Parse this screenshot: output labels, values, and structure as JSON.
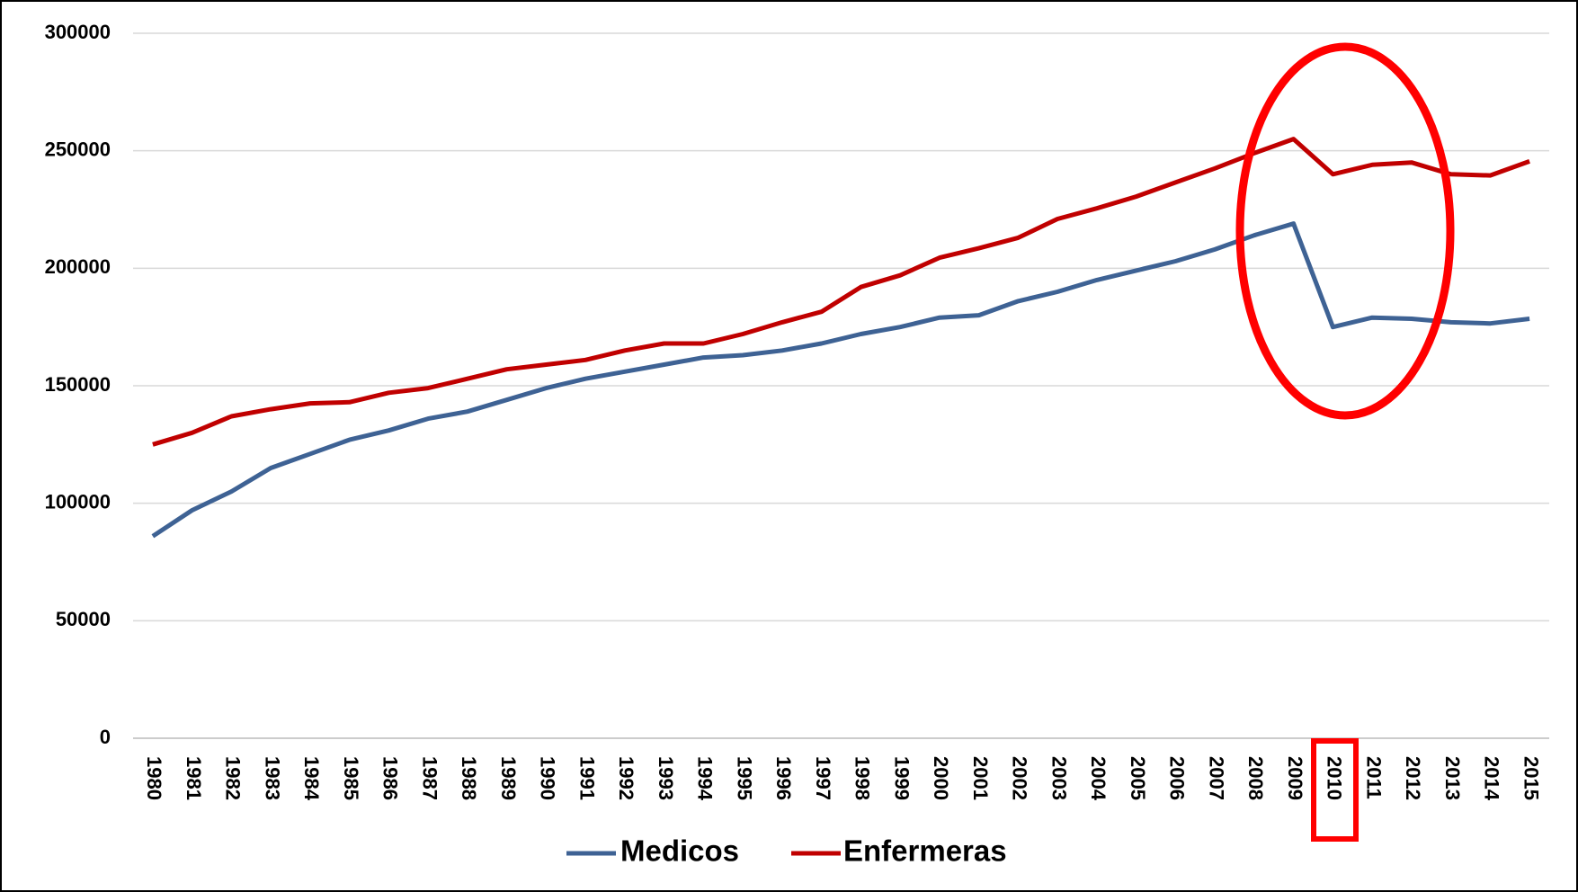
{
  "chart_data": {
    "type": "line",
    "categories": [
      "1980",
      "1981",
      "1982",
      "1983",
      "1984",
      "1985",
      "1986",
      "1987",
      "1988",
      "1989",
      "1990",
      "1991",
      "1992",
      "1993",
      "1994",
      "1995",
      "1996",
      "1997",
      "1998",
      "1999",
      "2000",
      "2001",
      "2002",
      "2003",
      "2004",
      "2005",
      "2006",
      "2007",
      "2008",
      "2009",
      "2010",
      "2011",
      "2012",
      "2013",
      "2014",
      "2015"
    ],
    "series": [
      {
        "name": "Medicos",
        "color": "#3e6294",
        "values": [
          86000,
          97000,
          105000,
          115000,
          121000,
          127000,
          131000,
          136000,
          139000,
          144000,
          149000,
          153000,
          156000,
          159000,
          162000,
          163000,
          165000,
          168000,
          172000,
          175000,
          179000,
          180000,
          186000,
          190000,
          195000,
          199000,
          203000,
          208000,
          214000,
          219000,
          175000,
          179000,
          178500,
          177000,
          176500,
          178500
        ]
      },
      {
        "name": "Enfermeras",
        "color": "#c00000",
        "values": [
          125000,
          130000,
          137000,
          140000,
          142500,
          143000,
          147000,
          149000,
          153000,
          157000,
          159000,
          161000,
          165000,
          168000,
          168000,
          172000,
          177000,
          181500,
          192000,
          197000,
          204500,
          208500,
          213000,
          221000,
          225500,
          230500,
          236500,
          242500,
          249000,
          255000,
          240000,
          244000,
          245000,
          240000,
          239500,
          245500
        ]
      }
    ],
    "ylim": [
      0,
      300000
    ],
    "yticks": [
      0,
      50000,
      100000,
      150000,
      200000,
      250000,
      300000
    ],
    "grid": true,
    "legend": "bottom"
  }
}
